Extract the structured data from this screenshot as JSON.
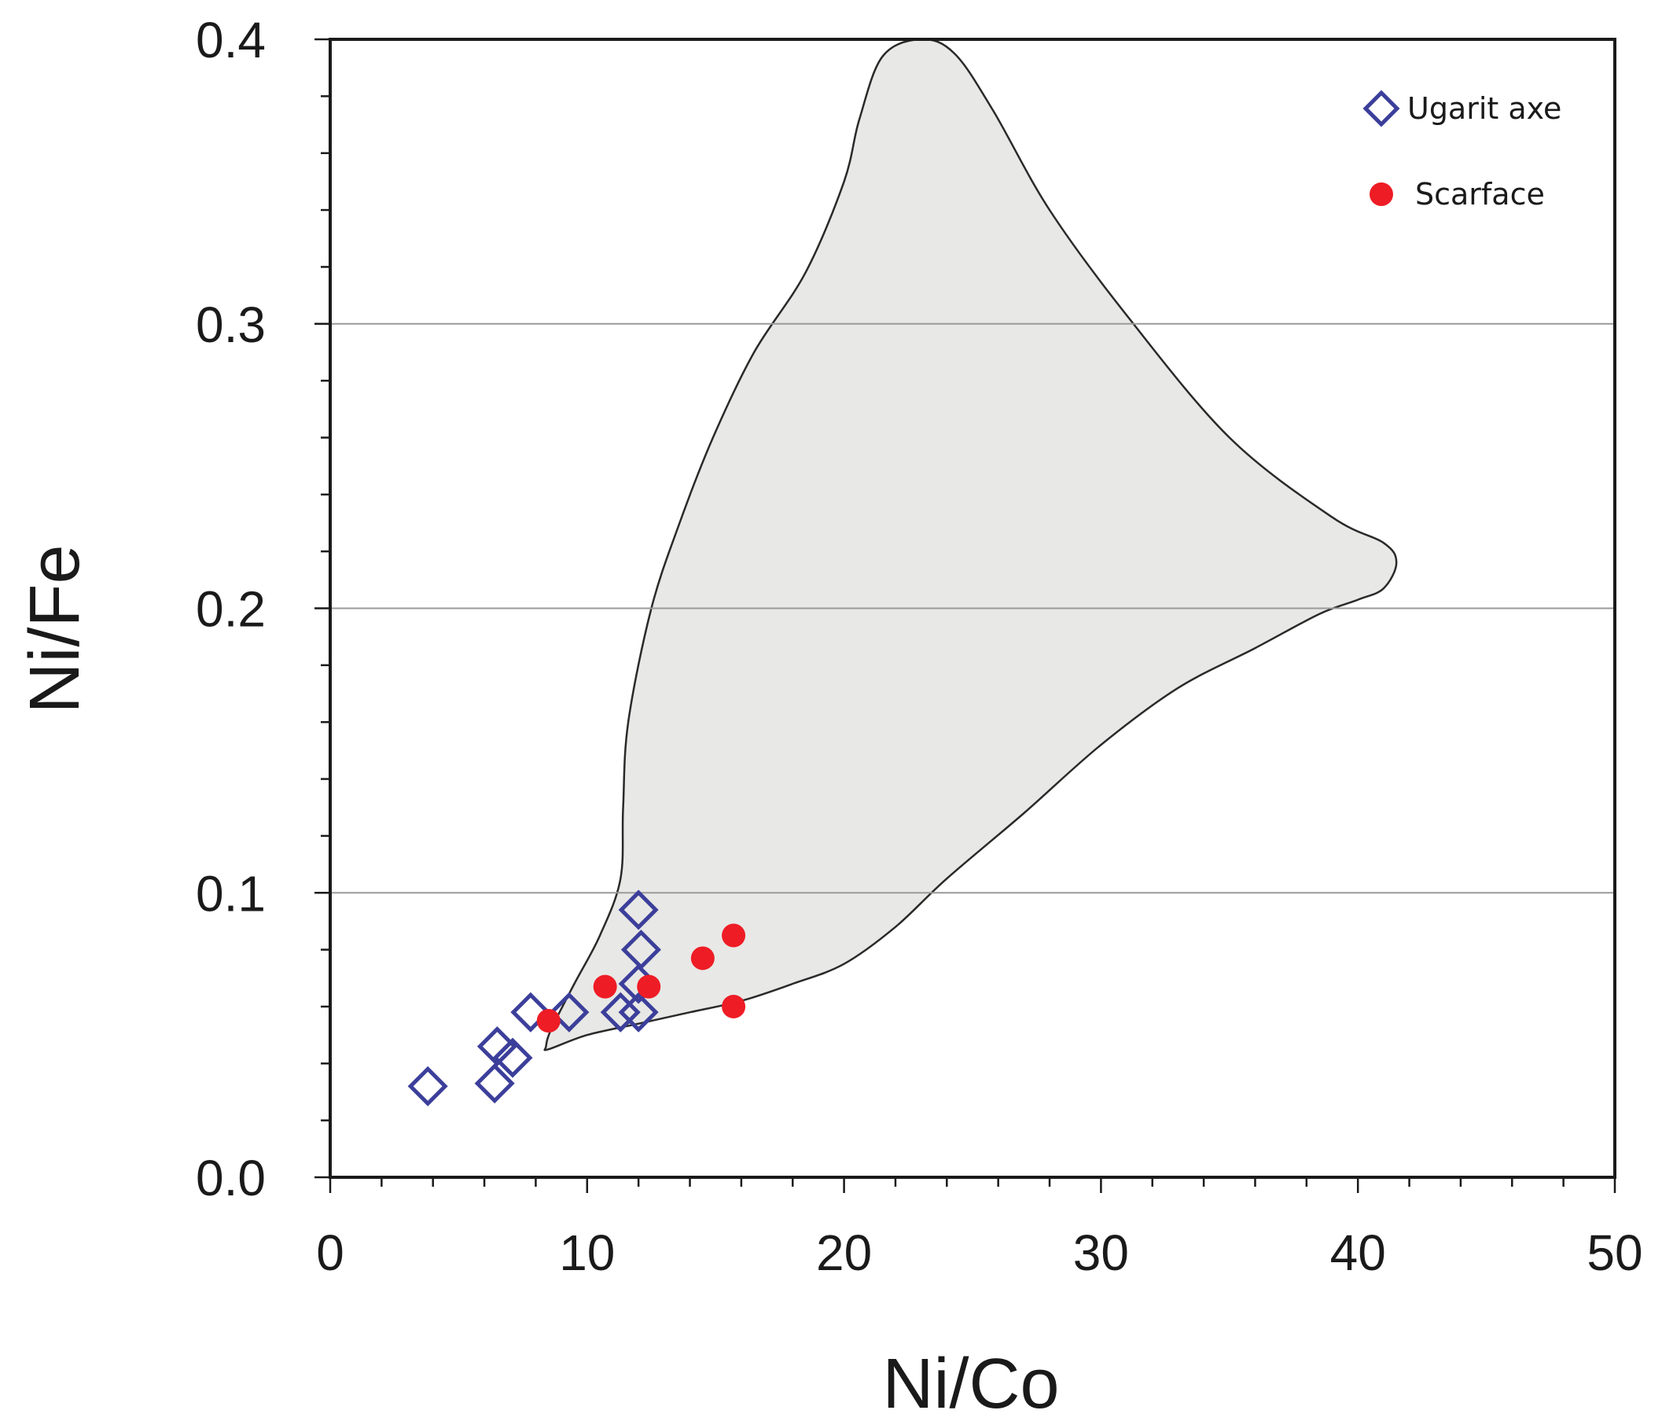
{
  "chart_data": {
    "type": "scatter",
    "title": "",
    "xlabel": "Ni/Co",
    "ylabel": "Ni/Fe",
    "xlim": [
      0,
      50
    ],
    "ylim": [
      0,
      0.4
    ],
    "x_ticks": [
      "0",
      "10",
      "20",
      "30",
      "40",
      "50"
    ],
    "y_ticks": [
      "0.0",
      "0.1",
      "0.2",
      "0.3",
      "0.4"
    ],
    "gridlines_y": [
      0.1,
      0.2,
      0.3
    ],
    "grid": "horizontal",
    "legend_position": "top-right",
    "region": {
      "fill": "#e8e8e6",
      "stroke": "#2a2a2a",
      "outline": [
        [
          8.5,
          0.045
        ],
        [
          10,
          0.05
        ],
        [
          12,
          0.054
        ],
        [
          14,
          0.058
        ],
        [
          16,
          0.062
        ],
        [
          18,
          0.068
        ],
        [
          20,
          0.075
        ],
        [
          22,
          0.088
        ],
        [
          24,
          0.105
        ],
        [
          27,
          0.128
        ],
        [
          30,
          0.152
        ],
        [
          33,
          0.172
        ],
        [
          36,
          0.186
        ],
        [
          38.5,
          0.198
        ],
        [
          40,
          0.203
        ],
        [
          41,
          0.207
        ],
        [
          41.5,
          0.216
        ],
        [
          41,
          0.223
        ],
        [
          39,
          0.232
        ],
        [
          35,
          0.26
        ],
        [
          31,
          0.303
        ],
        [
          28,
          0.34
        ],
        [
          25.8,
          0.375
        ],
        [
          24.3,
          0.395
        ],
        [
          23,
          0.4
        ],
        [
          21.5,
          0.394
        ],
        [
          20.6,
          0.372
        ],
        [
          20,
          0.35
        ],
        [
          18.5,
          0.318
        ],
        [
          16.5,
          0.29
        ],
        [
          14.9,
          0.26
        ],
        [
          13.6,
          0.23
        ],
        [
          12.5,
          0.2
        ],
        [
          11.6,
          0.16
        ],
        [
          11.4,
          0.13
        ],
        [
          11.3,
          0.105
        ],
        [
          10.5,
          0.085
        ],
        [
          9.5,
          0.068
        ],
        [
          8.6,
          0.052
        ],
        [
          8.4,
          0.046
        ]
      ]
    },
    "series": [
      {
        "name": "Ugarit axe",
        "marker": "diamond-open",
        "color": "#3c3f9a",
        "points": [
          [
            3.8,
            0.032
          ],
          [
            6.4,
            0.033
          ],
          [
            6.5,
            0.046
          ],
          [
            7.1,
            0.042
          ],
          [
            7.8,
            0.058
          ],
          [
            9.3,
            0.058
          ],
          [
            11.3,
            0.058
          ],
          [
            12.0,
            0.058
          ],
          [
            12.0,
            0.068
          ],
          [
            12.1,
            0.08
          ],
          [
            12.0,
            0.094
          ]
        ]
      },
      {
        "name": "Scarface",
        "marker": "circle-filled",
        "color": "#ee1c25",
        "points": [
          [
            8.5,
            0.055
          ],
          [
            10.7,
            0.067
          ],
          [
            12.4,
            0.067
          ],
          [
            14.5,
            0.077
          ],
          [
            15.7,
            0.085
          ],
          [
            15.7,
            0.06
          ]
        ]
      }
    ]
  }
}
